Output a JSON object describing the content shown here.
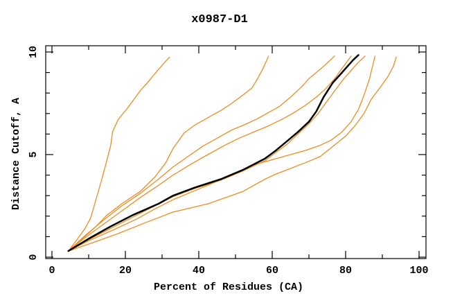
{
  "chart_data": {
    "type": "line",
    "title": "x0987-D1",
    "xlabel": "Percent of Residues (CA)",
    "ylabel": "Distance Cutoff, A",
    "xlim": [
      0,
      100
    ],
    "ylim": [
      0,
      10
    ],
    "x_ticks": [
      0,
      20,
      40,
      60,
      80,
      100
    ],
    "x_minor_ticks": [
      10,
      30,
      50,
      70,
      90
    ],
    "y_ticks": [
      0,
      5,
      10
    ],
    "y_minor_ticks": [
      1,
      2,
      3,
      4,
      6,
      7,
      8,
      9
    ],
    "grid": false,
    "legend": "none",
    "colors": {
      "model": "#ee8c21",
      "highlight": "#000000",
      "axis": "#000000",
      "background": "#ffffff"
    },
    "series": [
      {
        "name": "model-curve-1",
        "role": "model",
        "color": "#ee8c21",
        "points": [
          [
            4.5,
            0.3
          ],
          [
            7,
            0.9
          ],
          [
            9,
            1.4
          ],
          [
            10.5,
            1.9
          ],
          [
            11.5,
            2.5
          ],
          [
            13.5,
            3.75
          ],
          [
            15,
            4.75
          ],
          [
            16,
            5.45
          ],
          [
            16.5,
            6.1
          ],
          [
            18,
            6.7
          ],
          [
            20.5,
            7.25
          ],
          [
            24,
            8.1
          ],
          [
            26,
            8.5
          ],
          [
            29,
            9.15
          ],
          [
            32,
            9.75
          ]
        ]
      },
      {
        "name": "model-curve-2",
        "role": "model",
        "color": "#ee8c21",
        "points": [
          [
            4.5,
            0.3
          ],
          [
            8,
            0.85
          ],
          [
            12,
            1.5
          ],
          [
            15,
            2.05
          ],
          [
            19,
            2.6
          ],
          [
            24,
            3.2
          ],
          [
            28,
            3.9
          ],
          [
            31,
            4.6
          ],
          [
            33,
            5.3
          ],
          [
            36,
            6.05
          ],
          [
            39,
            6.45
          ],
          [
            43,
            6.85
          ],
          [
            46,
            7.15
          ],
          [
            49,
            7.5
          ],
          [
            52,
            7.9
          ],
          [
            54.5,
            8.25
          ],
          [
            56,
            8.7
          ],
          [
            57.5,
            9.2
          ],
          [
            59,
            9.8
          ]
        ]
      },
      {
        "name": "model-curve-3",
        "role": "model",
        "color": "#ee8c21",
        "points": [
          [
            4.5,
            0.3
          ],
          [
            9,
            1.05
          ],
          [
            14,
            1.8
          ],
          [
            19,
            2.5
          ],
          [
            24,
            3.1
          ],
          [
            29,
            3.8
          ],
          [
            33,
            4.4
          ],
          [
            37,
            4.9
          ],
          [
            41,
            5.4
          ],
          [
            45,
            5.8
          ],
          [
            49,
            6.2
          ],
          [
            53,
            6.5
          ],
          [
            56,
            6.75
          ],
          [
            59,
            7.05
          ],
          [
            62,
            7.35
          ],
          [
            65,
            7.8
          ],
          [
            68,
            8.3
          ],
          [
            70,
            8.7
          ],
          [
            72,
            9.0
          ],
          [
            74,
            9.3
          ],
          [
            77,
            9.8
          ]
        ]
      },
      {
        "name": "model-curve-4",
        "role": "model",
        "color": "#ee8c21",
        "points": [
          [
            4.5,
            0.3
          ],
          [
            9,
            0.95
          ],
          [
            14,
            1.6
          ],
          [
            19,
            2.25
          ],
          [
            24,
            2.9
          ],
          [
            29,
            3.5
          ],
          [
            33,
            4.0
          ],
          [
            38,
            4.55
          ],
          [
            43,
            5.05
          ],
          [
            47,
            5.45
          ],
          [
            51,
            5.8
          ],
          [
            55,
            6.1
          ],
          [
            59,
            6.4
          ],
          [
            63,
            6.75
          ],
          [
            66,
            7.05
          ],
          [
            69,
            7.4
          ],
          [
            72,
            7.8
          ],
          [
            74.5,
            8.2
          ],
          [
            77,
            8.7
          ],
          [
            79,
            9.2
          ],
          [
            81.5,
            9.8
          ]
        ]
      },
      {
        "name": "model-curve-5",
        "role": "model",
        "color": "#ee8c21",
        "points": [
          [
            4.5,
            0.3
          ],
          [
            10,
            0.85
          ],
          [
            16,
            1.4
          ],
          [
            22,
            1.95
          ],
          [
            28,
            2.5
          ],
          [
            33,
            2.95
          ],
          [
            39,
            3.35
          ],
          [
            46,
            3.75
          ],
          [
            52,
            4.2
          ],
          [
            58,
            4.7
          ],
          [
            61,
            5.1
          ],
          [
            64,
            5.5
          ],
          [
            67,
            6.0
          ],
          [
            70,
            6.5
          ],
          [
            72.5,
            7.0
          ],
          [
            74.5,
            7.5
          ],
          [
            77,
            8.1
          ],
          [
            79.5,
            8.7
          ],
          [
            81.5,
            9.1
          ],
          [
            83.5,
            9.5
          ],
          [
            85.3,
            9.8
          ]
        ]
      },
      {
        "name": "model-curve-6",
        "role": "model",
        "color": "#ee8c21",
        "points": [
          [
            4.5,
            0.3
          ],
          [
            10,
            0.8
          ],
          [
            17,
            1.35
          ],
          [
            23,
            1.85
          ],
          [
            28,
            2.35
          ],
          [
            33,
            2.8
          ],
          [
            39,
            3.25
          ],
          [
            45,
            3.7
          ],
          [
            50,
            4.1
          ],
          [
            55,
            4.5
          ],
          [
            59,
            4.7
          ],
          [
            64,
            4.95
          ],
          [
            69,
            5.2
          ],
          [
            73,
            5.45
          ],
          [
            76,
            5.7
          ],
          [
            79,
            6.1
          ],
          [
            81.5,
            6.6
          ],
          [
            83.5,
            7.2
          ],
          [
            85,
            7.9
          ],
          [
            86.5,
            8.7
          ],
          [
            88,
            9.8
          ]
        ]
      },
      {
        "name": "model-curve-7",
        "role": "model",
        "color": "#ee8c21",
        "points": [
          [
            4.5,
            0.3
          ],
          [
            11,
            0.7
          ],
          [
            18,
            1.15
          ],
          [
            25,
            1.65
          ],
          [
            33,
            2.2
          ],
          [
            42.5,
            2.6
          ],
          [
            52,
            3.2
          ],
          [
            58,
            3.8
          ],
          [
            61,
            4.05
          ],
          [
            69,
            4.6
          ],
          [
            73,
            4.9
          ],
          [
            76.5,
            5.4
          ],
          [
            80,
            5.9
          ],
          [
            82.5,
            6.4
          ],
          [
            85,
            7.0
          ],
          [
            87,
            7.7
          ],
          [
            89.5,
            8.3
          ],
          [
            91.5,
            8.8
          ],
          [
            93,
            9.3
          ],
          [
            93.8,
            9.75
          ]
        ]
      },
      {
        "name": "highlighted-model-curve",
        "role": "highlight",
        "color": "#000000",
        "points": [
          [
            4.5,
            0.3
          ],
          [
            10,
            0.9
          ],
          [
            16,
            1.5
          ],
          [
            22,
            2.05
          ],
          [
            29,
            2.6
          ],
          [
            33,
            3.0
          ],
          [
            39,
            3.4
          ],
          [
            46,
            3.8
          ],
          [
            52,
            4.25
          ],
          [
            58,
            4.8
          ],
          [
            61,
            5.2
          ],
          [
            64,
            5.65
          ],
          [
            67,
            6.1
          ],
          [
            70,
            6.6
          ],
          [
            72,
            7.1
          ],
          [
            74,
            7.8
          ],
          [
            76.5,
            8.5
          ],
          [
            78.5,
            8.9
          ],
          [
            80,
            9.2
          ],
          [
            82,
            9.6
          ],
          [
            83.5,
            9.85
          ]
        ]
      }
    ]
  }
}
